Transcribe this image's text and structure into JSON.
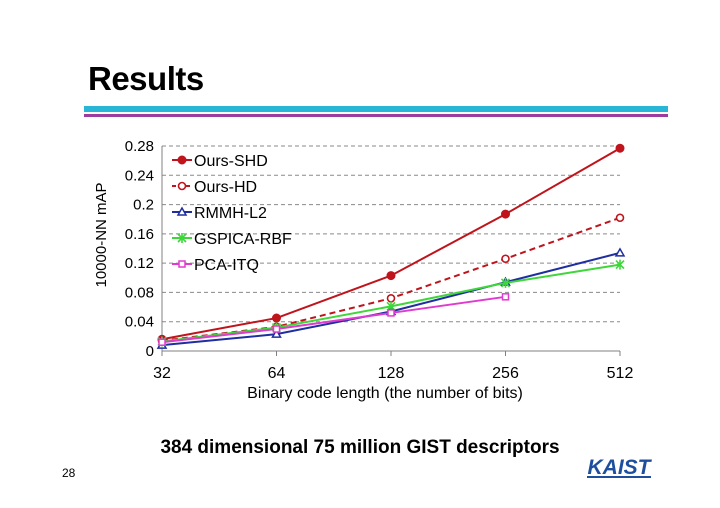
{
  "slide": {
    "title": "Results",
    "caption": "384 dimensional 75 million GIST descriptors",
    "page_number": "28",
    "logo_text": "KAIST"
  },
  "colors": {
    "bar_top": "#29b6d6",
    "bar_bottom": "#9b3ca0",
    "logo": "#1d4f9e"
  },
  "chart_data": {
    "type": "line",
    "xlabel": "Binary code length (the number of bits)",
    "ylabel": "10000-NN mAP",
    "categories": [
      "32",
      "64",
      "128",
      "256",
      "512"
    ],
    "y_ticks": [
      "0",
      "0.04",
      "0.08",
      "0.12",
      "0.16",
      "0.2",
      "0.24",
      "0.28"
    ],
    "ylim": [
      0,
      0.28
    ],
    "grid": "horizontal dashed",
    "legend": "top-left",
    "series": [
      {
        "name": "Ours-SHD",
        "color": "#c0141c",
        "dash": false,
        "marker": "filled-circle",
        "values": [
          0.016,
          0.045,
          0.103,
          0.187,
          0.277
        ]
      },
      {
        "name": "Ours-HD",
        "color": "#c0141c",
        "dash": true,
        "marker": "open-circle",
        "values": [
          0.014,
          0.033,
          0.072,
          0.126,
          0.182
        ]
      },
      {
        "name": "RMMH-L2",
        "color": "#1f2fa0",
        "dash": false,
        "marker": "open-triangle",
        "values": [
          0.008,
          0.023,
          0.054,
          0.094,
          0.134
        ]
      },
      {
        "name": "GSPICA-RBF",
        "color": "#3ed63a",
        "dash": false,
        "marker": "star",
        "values": [
          0.013,
          0.032,
          0.061,
          0.093,
          0.118
        ]
      },
      {
        "name": "PCA-ITQ",
        "color": "#e03bd0",
        "dash": false,
        "marker": "open-square",
        "values": [
          0.012,
          0.03,
          0.052,
          0.074,
          null
        ]
      }
    ]
  }
}
